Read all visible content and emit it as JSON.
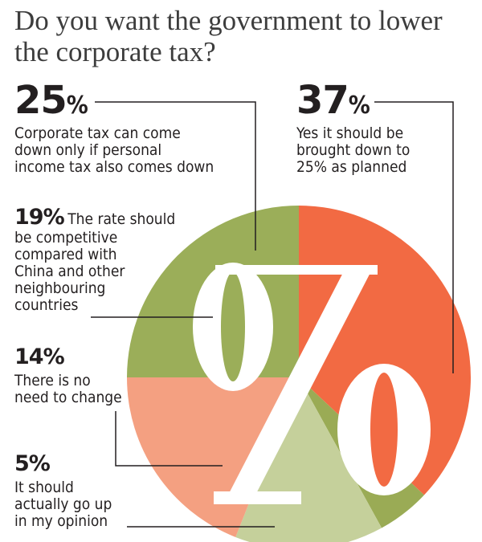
{
  "title": "Do you want the government to lower the corporate tax?",
  "chart_data": {
    "type": "pie",
    "title": "Do you want the government to lower the corporate tax?",
    "slices": [
      {
        "value": 37,
        "label": "37%",
        "text": "Yes it should be brought down to 25% as planned",
        "color": "#f26a43"
      },
      {
        "value": 5,
        "label": "5%",
        "text": "It should actually go up in my opinion",
        "color": "#9aab55"
      },
      {
        "value": 14,
        "label": "14%",
        "text": "There is no need to change",
        "color": "#c5d09b"
      },
      {
        "value": 19,
        "label": "19%",
        "text": "The rate should be competitive compared with China and other neighbouring countries",
        "color": "#f4a081"
      },
      {
        "value": 25,
        "label": "25%",
        "text": "Corporate tax can come down only if personal income tax also comes down",
        "color": "#9bae59"
      }
    ]
  },
  "labels": {
    "p25": {
      "num": "25",
      "sign": "%",
      "lines": [
        "Corporate tax can come",
        "down only if personal",
        "income tax also comes down"
      ]
    },
    "p37": {
      "num": "37",
      "sign": "%",
      "lines": [
        "Yes it should be",
        "brought down to",
        "25% as planned"
      ]
    },
    "p19": {
      "num": "19%",
      "first": "The rate should",
      "lines": [
        "be competitive",
        "compared with",
        "China and other",
        "neighbouring",
        "countries"
      ]
    },
    "p14": {
      "num": "14%",
      "lines": [
        "There is no",
        "need to change"
      ]
    },
    "p5": {
      "num": "5%",
      "lines": [
        "It should",
        "actually go up",
        "in my opinion"
      ]
    }
  }
}
